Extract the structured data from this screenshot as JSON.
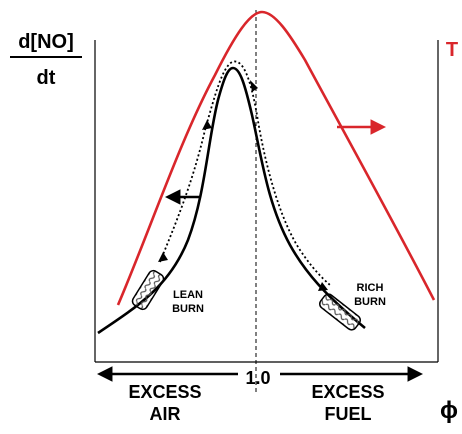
{
  "labels": {
    "y_top": "d[NO]",
    "y_bottom": "dt",
    "temperature": "T",
    "phi": "ϕ",
    "center_value": "1.0",
    "left_line1": "EXCESS",
    "left_line2": "AIR",
    "right_line1": "EXCESS",
    "right_line2": "FUEL",
    "lean_line1": "LEAN",
    "lean_line2": "BURN",
    "rich_line1": "RICH",
    "rich_line2": "BURN"
  },
  "colors": {
    "curve": "#000000",
    "temperature": "#d9262b",
    "arrow": "#000000",
    "background": "#ffffff"
  },
  "icons": [
    "converter-icon",
    "converter-icon"
  ]
}
